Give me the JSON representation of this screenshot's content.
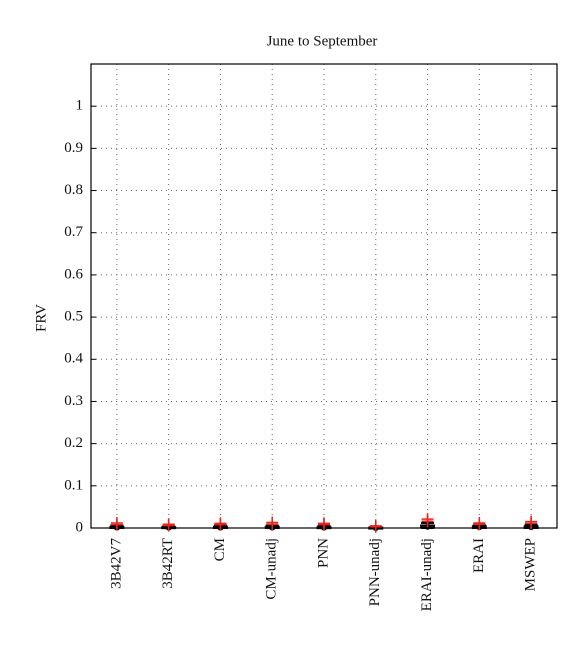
{
  "chart_data": {
    "type": "box",
    "title": "June to September",
    "y_label": "FRV",
    "categories": [
      "3B42V7",
      "3B42RT",
      "CM",
      "CM-unadj",
      "PNN",
      "PNN-unadj",
      "ERAI-unadj",
      "ERAI",
      "MSWEP"
    ],
    "boxes": [
      {
        "min": 0,
        "q1": 0,
        "median": 0.001,
        "q3": 0.003,
        "max": 0.006,
        "outliers": [
          0.008,
          0.012
        ]
      },
      {
        "min": 0,
        "q1": 0,
        "median": 0.001,
        "q3": 0.002,
        "max": 0.004,
        "outliers": [
          0.006,
          0.009
        ]
      },
      {
        "min": 0,
        "q1": 0,
        "median": 0.001,
        "q3": 0.003,
        "max": 0.006,
        "outliers": [
          0.008,
          0.011
        ]
      },
      {
        "min": 0,
        "q1": 0,
        "median": 0.001,
        "q3": 0.003,
        "max": 0.006,
        "outliers": [
          0.009,
          0.013
        ]
      },
      {
        "min": 0,
        "q1": 0,
        "median": 0.001,
        "q3": 0.002,
        "max": 0.005,
        "outliers": [
          0.008,
          0.011
        ]
      },
      {
        "min": 0,
        "q1": 0,
        "median": 0,
        "q3": 0.001,
        "max": 0.002,
        "outliers": [
          0.003,
          0.005
        ]
      },
      {
        "min": 0,
        "q1": 0.001,
        "median": 0.003,
        "q3": 0.006,
        "max": 0.012,
        "outliers": [
          0.016,
          0.021
        ]
      },
      {
        "min": 0,
        "q1": 0,
        "median": 0.002,
        "q3": 0.004,
        "max": 0.007,
        "outliers": [
          0.009,
          0.012
        ]
      },
      {
        "min": 0,
        "q1": 0,
        "median": 0.002,
        "q3": 0.004,
        "max": 0.008,
        "outliers": [
          0.011,
          0.015
        ]
      }
    ],
    "box_color": "#000000",
    "outlier_color": "#e8231c",
    "ylim": [
      0,
      1.1
    ],
    "yticks": [
      0,
      0.1,
      0.2,
      0.3,
      0.4,
      0.5,
      0.6,
      0.7,
      0.8,
      0.9,
      1
    ],
    "grid": true
  }
}
